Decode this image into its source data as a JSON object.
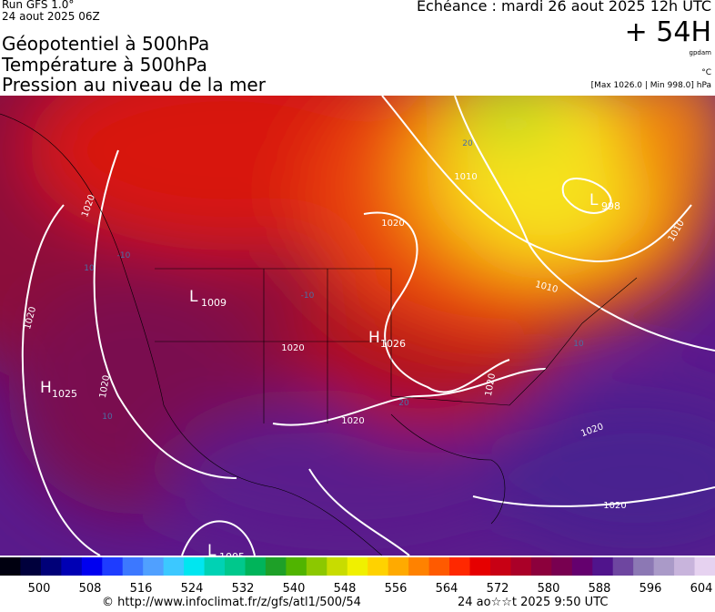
{
  "header": {
    "run": "Run GFS 1.0°",
    "run_date": "24 aout 2025 06Z",
    "titles": [
      "Géopotentiel à 500hPa",
      "Température à 500hPa",
      "Pression au niveau de la mer"
    ],
    "echeance": "Echéance : mardi 26 aout 2025 12h UTC",
    "lead": "+ 54H",
    "unit_geo": "gpdam",
    "unit_temp": "°C",
    "range": "[Max 1026.0 | Min 998.0] hPa"
  },
  "map": {
    "centers": [
      {
        "letter": "H",
        "value": "1025"
      },
      {
        "letter": "L",
        "value": "1009"
      },
      {
        "letter": "H",
        "value": "1026"
      },
      {
        "letter": "L",
        "value": "998"
      },
      {
        "letter": "L",
        "value": "1005"
      }
    ],
    "isobar_labels": [
      "1020",
      "1020",
      "1020",
      "1020",
      "1010",
      "1020",
      "1020",
      "1010",
      "1020",
      "1020",
      "1020",
      "1010"
    ],
    "temp_labels": [
      "10",
      "-10",
      "-10",
      "20",
      "10",
      "20",
      "10"
    ]
  },
  "colorbar": {
    "colors": [
      "#000010",
      "#00003c",
      "#000078",
      "#0000b4",
      "#0000f0",
      "#1e3cff",
      "#3c78ff",
      "#50a0ff",
      "#3cc8ff",
      "#00e6f0",
      "#00d2b4",
      "#00c88c",
      "#00b45a",
      "#1ea028",
      "#50b400",
      "#8cc800",
      "#c8dc00",
      "#f0f000",
      "#ffd200",
      "#ffaa00",
      "#ff8200",
      "#ff5a00",
      "#ff2800",
      "#e60000",
      "#c80014",
      "#aa0028",
      "#8c003c",
      "#780050",
      "#64006e",
      "#50148c",
      "#6e46a0",
      "#8c78b4",
      "#aa9ac8",
      "#c8b4dc",
      "#e6d2f0"
    ],
    "labels": [
      "500",
      "508",
      "516",
      "524",
      "532",
      "540",
      "548",
      "556",
      "564",
      "572",
      "580",
      "588",
      "596",
      "604"
    ]
  },
  "footer": {
    "source": "© http://www.infoclimat.fr/z/gfs/atl1/500/54",
    "generated": "24 ao☆☆t 2025  9:50 UTC"
  }
}
